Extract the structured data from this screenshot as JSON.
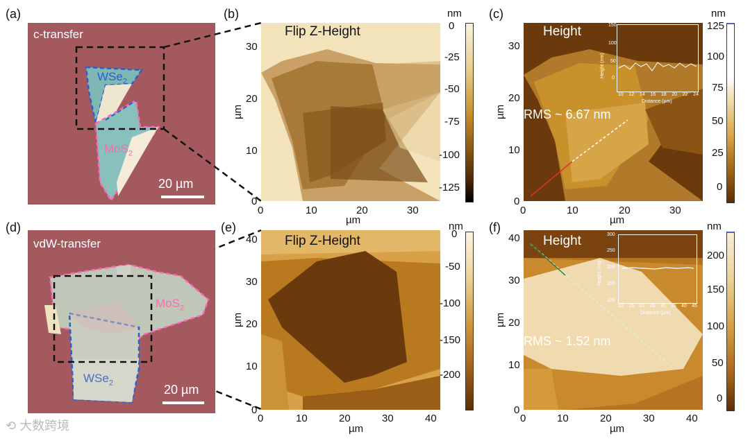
{
  "panels": {
    "a": {
      "label": "(a)",
      "title": "c-transfer",
      "flake_top": "WSe",
      "flake_top_sub": "2",
      "flake_bottom": "MoS",
      "flake_bottom_sub": "2",
      "scale": "20 µm"
    },
    "b": {
      "label": "(b)",
      "title": "Flip Z-Height",
      "unit": "nm",
      "cbar_ticks": [
        "0",
        "-25",
        "-50",
        "-75",
        "-100",
        "-125"
      ],
      "x_ticks": [
        "0",
        "10",
        "20",
        "30"
      ],
      "y_ticks": [
        "0",
        "10",
        "20",
        "30"
      ],
      "xlabel": "µm",
      "ylabel": "µm"
    },
    "c": {
      "label": "(c)",
      "title": "Height",
      "unit": "nm",
      "rms": "RMS ~ 6.67 nm",
      "cbar_ticks": [
        "125",
        "100",
        "75",
        "50",
        "25",
        "0"
      ],
      "x_ticks": [
        "0",
        "10",
        "20",
        "30"
      ],
      "y_ticks": [
        "0",
        "10",
        "20",
        "30"
      ],
      "xlabel": "µm",
      "ylabel": "µm",
      "inset": {
        "ylabel": "Height (nm)",
        "xlabel": "Distance (µm)",
        "y_ticks": [
          "150",
          "100",
          "50",
          "0"
        ],
        "x_ticks": [
          "10",
          "12",
          "14",
          "16",
          "18",
          "20",
          "22",
          "24"
        ]
      }
    },
    "d": {
      "label": "(d)",
      "title": "vdW-transfer",
      "flake_top": "MoS",
      "flake_top_sub": "2",
      "flake_bottom": "WSe",
      "flake_bottom_sub": "2",
      "scale": "20 µm"
    },
    "e": {
      "label": "(e)",
      "title": "Flip Z-Height",
      "unit": "nm",
      "cbar_ticks": [
        "0",
        "-50",
        "-100",
        "-150",
        "-200"
      ],
      "x_ticks": [
        "0",
        "10",
        "20",
        "30",
        "40"
      ],
      "y_ticks": [
        "0",
        "10",
        "20",
        "30",
        "40"
      ],
      "xlabel": "µm",
      "ylabel": "µm"
    },
    "f": {
      "label": "(f)",
      "title": "Height",
      "unit": "nm",
      "rms": "RMS ~ 1.52 nm",
      "cbar_ticks": [
        "200",
        "150",
        "100",
        "50",
        "0"
      ],
      "x_ticks": [
        "0",
        "10",
        "20",
        "30",
        "40"
      ],
      "y_ticks": [
        "0",
        "10",
        "20",
        "30",
        "40"
      ],
      "xlabel": "µm",
      "ylabel": "µm",
      "inset": {
        "ylabel": "Height (nm)",
        "xlabel": "Distance (µm)",
        "y_ticks": [
          "300",
          "250",
          "200",
          "150",
          "100"
        ],
        "x_ticks": [
          "10",
          "15",
          "20",
          "25",
          "30",
          "35",
          "40",
          "45"
        ]
      }
    }
  },
  "watermark": "大数跨境",
  "colors": {
    "optical_bg": "#a4595f",
    "wse2_outline": "#2a5fd0",
    "mos2_outline": "#ff69b4",
    "afm_dark": "#5a2e05",
    "afm_light": "#f5e6c0"
  }
}
